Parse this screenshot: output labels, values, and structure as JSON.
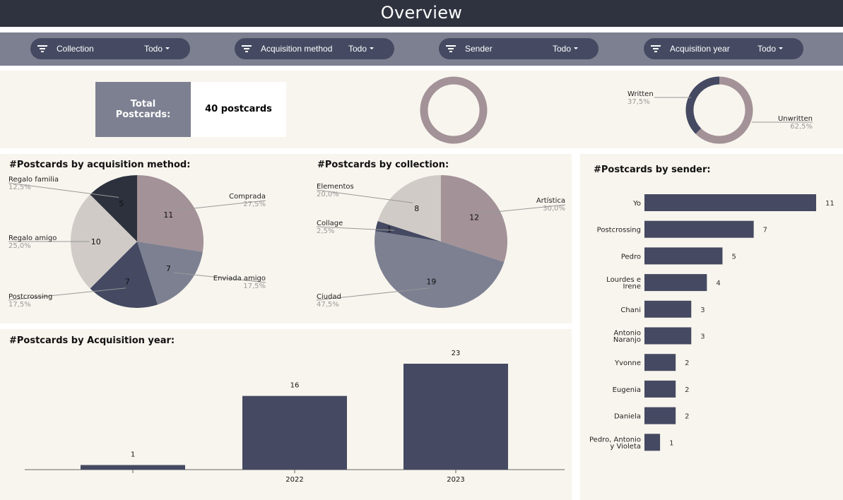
{
  "header": {
    "title": "Overview"
  },
  "filters": [
    {
      "label": "Collection",
      "value": "Todo"
    },
    {
      "label": "Acquisition method",
      "value": "Todo"
    },
    {
      "label": "Sender",
      "value": "Todo"
    },
    {
      "label": "Acquisition year",
      "value": "Todo"
    }
  ],
  "kpi": {
    "label": "Total Postcards:",
    "value": "40 postcards"
  },
  "colors": {
    "dark": "#2c313d",
    "navy": "#454a62",
    "slate": "#7d8091",
    "mauve": "#a39297",
    "beige": "#d0cbc7",
    "panel": "#f8f5ee",
    "filterbar": "#7d8091"
  },
  "chart_data": [
    {
      "id": "ring",
      "type": "pie",
      "categories": [],
      "values": []
    },
    {
      "id": "written",
      "type": "pie",
      "categories": [
        "Written",
        "Unwritten"
      ],
      "values": [
        37.5,
        62.5
      ],
      "percent_labels": [
        "37,5%",
        "62,5%"
      ]
    },
    {
      "id": "method",
      "type": "pie",
      "title": "#Postcards by acquisition method:",
      "categories": [
        "Comprada",
        "Enviada amigo",
        "Postcrossing",
        "Regalo amigo",
        "Regalo familia"
      ],
      "values": [
        11,
        7,
        7,
        10,
        5
      ],
      "percent_labels": [
        "27,5%",
        "17,5%",
        "17,5%",
        "25,0%",
        "12,5%"
      ]
    },
    {
      "id": "collection",
      "type": "pie",
      "title": "#Postcards by collection:",
      "categories": [
        "Artística",
        "Ciudad",
        "Collage",
        "Elementos"
      ],
      "values": [
        12,
        19,
        1,
        8
      ],
      "percent_labels": [
        "30,0%",
        "47,5%",
        "2,5%",
        "20,0%"
      ]
    },
    {
      "id": "year",
      "type": "bar",
      "title": "#Postcards by Acquisition year:",
      "categories": [
        "",
        "2022",
        "2023"
      ],
      "values": [
        1,
        16,
        23
      ],
      "ylim": [
        0,
        23
      ]
    },
    {
      "id": "sender",
      "type": "bar",
      "orientation": "horizontal",
      "title": "#Postcards by sender:",
      "categories": [
        [
          "Yo"
        ],
        [
          "Postcrossing"
        ],
        [
          "Pedro"
        ],
        [
          "Lourdes e",
          "Irene"
        ],
        [
          "Chani"
        ],
        [
          "Antonio",
          "Naranjo"
        ],
        [
          "Yvonne"
        ],
        [
          "Eugenia"
        ],
        [
          "Daniela"
        ],
        [
          "Pedro, Antonio",
          "y Violeta"
        ]
      ],
      "values": [
        11,
        7,
        5,
        4,
        3,
        3,
        2,
        2,
        2,
        1
      ],
      "xlim": [
        0,
        11
      ]
    }
  ]
}
